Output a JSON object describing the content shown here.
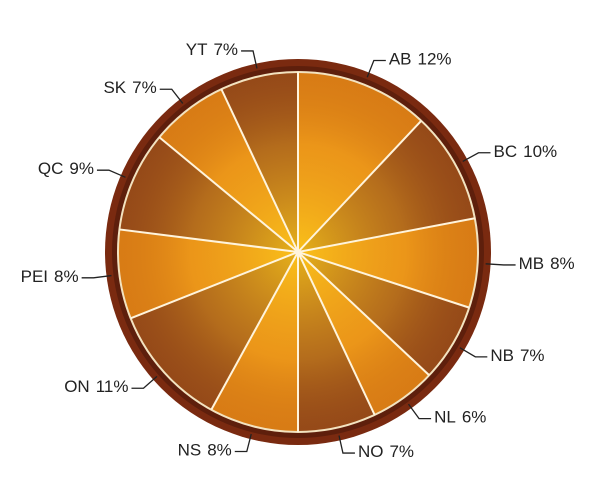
{
  "chart_data": {
    "type": "pie",
    "categories": [
      "AB",
      "BC",
      "MB",
      "NB",
      "NL",
      "NO",
      "NS",
      "ON",
      "PEI",
      "QC",
      "SK",
      "YT"
    ],
    "values": [
      12,
      10,
      8,
      7,
      6,
      7,
      8,
      11,
      8,
      9,
      7,
      7
    ],
    "value_labels": [
      "12%",
      "10%",
      "8%",
      "7%",
      "6%",
      "7%",
      "8%",
      "11%",
      "8%",
      "9%",
      "7%",
      "7%"
    ],
    "colors": [
      "#e98a16",
      "#9a4f1a",
      "#e98a16",
      "#9a4f1a",
      "#e98a16",
      "#9a4f1a",
      "#e98a16",
      "#9a4f1a",
      "#e98a16",
      "#9a4f1a",
      "#e98a16",
      "#9a4f1a"
    ]
  }
}
